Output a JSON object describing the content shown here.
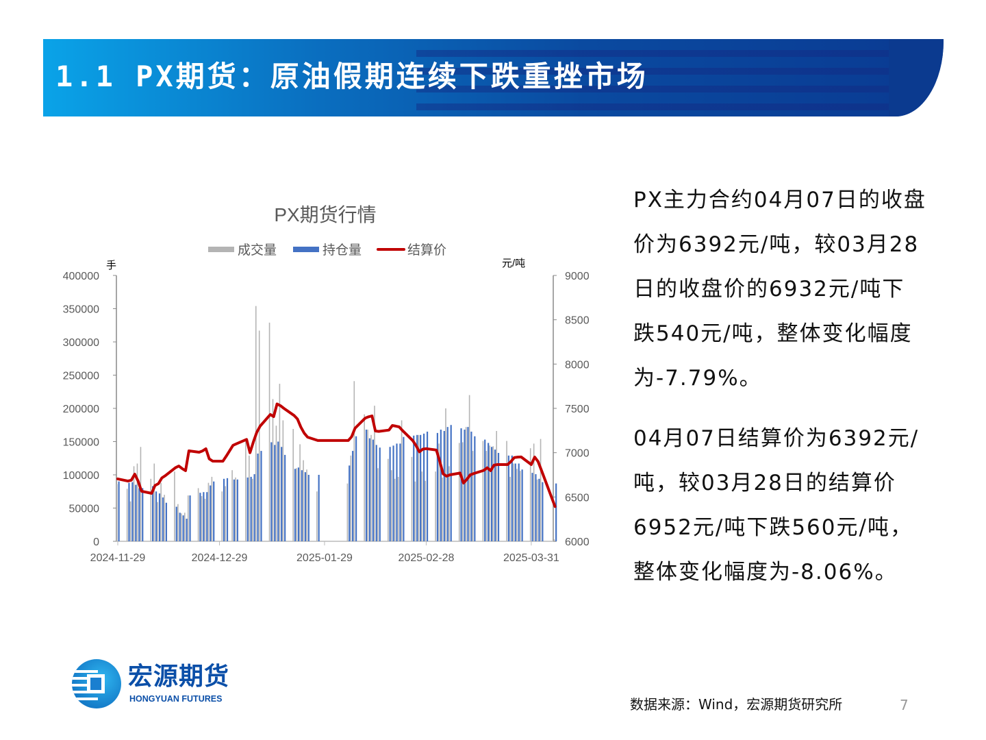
{
  "header": {
    "title": "1.1 PX期货：原油假期连续下跌重挫市场"
  },
  "body": {
    "paragraph1_lines": [
      "PX主力合约04月07日的收盘",
      "价为6392元/吨，较03月28",
      "日的收盘价的6932元/吨下",
      "跌540元/吨，整体变化幅度",
      "为-7.79%。"
    ],
    "paragraph2_lines": [
      "04月07日结算价为6392元/",
      "吨，较03月28日的结算价",
      "6952元/吨下跌560元/吨，",
      "整体变化幅度为-8.06%。"
    ]
  },
  "footer": {
    "logo_cn": "宏源期货",
    "logo_en": "HONGYUAN FUTURES",
    "source": "数据来源：Wind，宏源期货研究所",
    "page_number": "7"
  },
  "chart_data": {
    "type": "bar+line",
    "title": "PX期货行情",
    "left_axis_unit": "手",
    "right_axis_unit": "元/吨",
    "legend_position": "top",
    "legend": [
      "成交量",
      "持仓量",
      "结算价"
    ],
    "colors": {
      "成交量": "#B4B4B4",
      "持仓量": "#4472C4",
      "结算价": "#C00000"
    },
    "ylim_left": [
      0,
      400000
    ],
    "ylim_right": [
      6000,
      9000
    ],
    "yticks_left": [
      "0",
      "50000",
      "100000",
      "150000",
      "200000",
      "250000",
      "300000",
      "350000",
      "400000"
    ],
    "yticks_right": [
      "6000",
      "6500",
      "7000",
      "7500",
      "8000",
      "8500",
      "9000"
    ],
    "xticks": [
      "2024-11-29",
      "2024-12-29",
      "2025-01-29",
      "2025-02-28",
      "2025-03-31"
    ],
    "xlim": [
      "2024-11-29",
      "2025-04-07"
    ],
    "grid": false,
    "dates": [
      "2024-11-29",
      "2024-12-02",
      "2024-12-03",
      "2024-12-04",
      "2024-12-05",
      "2024-12-06",
      "2024-12-09",
      "2024-12-10",
      "2024-12-11",
      "2024-12-12",
      "2024-12-13",
      "2024-12-16",
      "2024-12-17",
      "2024-12-18",
      "2024-12-19",
      "2024-12-20",
      "2024-12-23",
      "2024-12-24",
      "2024-12-25",
      "2024-12-26",
      "2024-12-27",
      "2024-12-30",
      "2024-12-31",
      "2025-01-02",
      "2025-01-03",
      "2025-01-06",
      "2025-01-07",
      "2025-01-08",
      "2025-01-09",
      "2025-01-10",
      "2025-01-13",
      "2025-01-14",
      "2025-01-15",
      "2025-01-16",
      "2025-01-17",
      "2025-01-20",
      "2025-01-21",
      "2025-01-22",
      "2025-01-23",
      "2025-01-24",
      "2025-01-27",
      "2025-02-05",
      "2025-02-06",
      "2025-02-07",
      "2025-02-10",
      "2025-02-11",
      "2025-02-12",
      "2025-02-13",
      "2025-02-14",
      "2025-02-17",
      "2025-02-18",
      "2025-02-19",
      "2025-02-20",
      "2025-02-21",
      "2025-02-24",
      "2025-02-25",
      "2025-02-26",
      "2025-02-27",
      "2025-02-28",
      "2025-03-03",
      "2025-03-04",
      "2025-03-05",
      "2025-03-06",
      "2025-03-07",
      "2025-03-10",
      "2025-03-11",
      "2025-03-12",
      "2025-03-13",
      "2025-03-14",
      "2025-03-17",
      "2025-03-18",
      "2025-03-19",
      "2025-03-20",
      "2025-03-21",
      "2025-03-24",
      "2025-03-25",
      "2025-03-26",
      "2025-03-27",
      "2025-03-28",
      "2025-03-31",
      "2025-04-01",
      "2025-04-02",
      "2025-04-03",
      "2025-04-07"
    ],
    "series": [
      {
        "name": "成交量",
        "type": "bar",
        "axis": "left",
        "values": [
          86000,
          79000,
          60000,
          113000,
          117000,
          142000,
          94000,
          117000,
          59000,
          88000,
          70000,
          105000,
          56000,
          42000,
          43000,
          69000,
          80000,
          68000,
          64000,
          88000,
          97000,
          75000,
          83000,
          107000,
          96000,
          151000,
          129000,
          94000,
          354000,
          317000,
          329000,
          214000,
          174000,
          237000,
          182000,
          169000,
          110000,
          146000,
          122000,
          108000,
          75000,
          87000,
          129000,
          241000,
          191000,
          168000,
          160000,
          204000,
          110000,
          124000,
          107000,
          94000,
          97000,
          182000,
          127000,
          90000,
          160000,
          105000,
          91000,
          105000,
          147000,
          96000,
          200000,
          113000,
          148000,
          149000,
          172000,
          220000,
          136000,
          151000,
          136000,
          144000,
          143000,
          166000,
          151000,
          97000,
          117000,
          109000,
          106000,
          140000,
          147000,
          93000,
          154000,
          3000
        ]
      },
      {
        "name": "持仓量",
        "type": "bar",
        "axis": "left",
        "values": [
          90000,
          88000,
          89000,
          85000,
          80000,
          80000,
          83000,
          75000,
          72000,
          66000,
          58000,
          52000,
          43000,
          39000,
          34000,
          69000,
          73000,
          74000,
          74000,
          84000,
          90000,
          94000,
          95000,
          93000,
          93000,
          96000,
          97000,
          101000,
          132000,
          136000,
          149000,
          145000,
          150000,
          142000,
          130000,
          109000,
          111000,
          107000,
          104000,
          100000,
          100000,
          114000,
          136000,
          158000,
          168000,
          155000,
          153000,
          145000,
          141000,
          142000,
          144000,
          147000,
          147000,
          157000,
          159000,
          160000,
          160000,
          162000,
          165000,
          163000,
          168000,
          166000,
          172000,
          175000,
          170000,
          168000,
          172000,
          165000,
          158000,
          153000,
          148000,
          142000,
          138000,
          133000,
          129000,
          129000,
          117000,
          117000,
          108000,
          103000,
          101000,
          94000,
          89000,
          87000
        ]
      },
      {
        "name": "结算价",
        "type": "line",
        "axis": "right",
        "values": [
          6704,
          6680,
          6690,
          6758,
          6680,
          6565,
          6541,
          6630,
          6650,
          6715,
          6740,
          6830,
          6850,
          6820,
          6797,
          7021,
          7005,
          7020,
          7044,
          6930,
          6905,
          6904,
          6960,
          7083,
          7100,
          7150,
          7000,
          7120,
          7230,
          7300,
          7431,
          7407,
          7550,
          7530,
          7500,
          7420,
          7380,
          7290,
          7220,
          7175,
          7137,
          7137,
          7180,
          7276,
          7390,
          7405,
          7415,
          7245,
          7240,
          7255,
          7307,
          7300,
          7291,
          7250,
          7137,
          7080,
          7010,
          7040,
          7045,
          7030,
          6900,
          6760,
          6735,
          6750,
          6770,
          6657,
          6700,
          6750,
          6765,
          6800,
          6830,
          6797,
          6860,
          6866,
          6866,
          6900,
          6945,
          6950,
          6952,
          6866,
          6950,
          6900,
          6800,
          6392
        ]
      }
    ]
  }
}
